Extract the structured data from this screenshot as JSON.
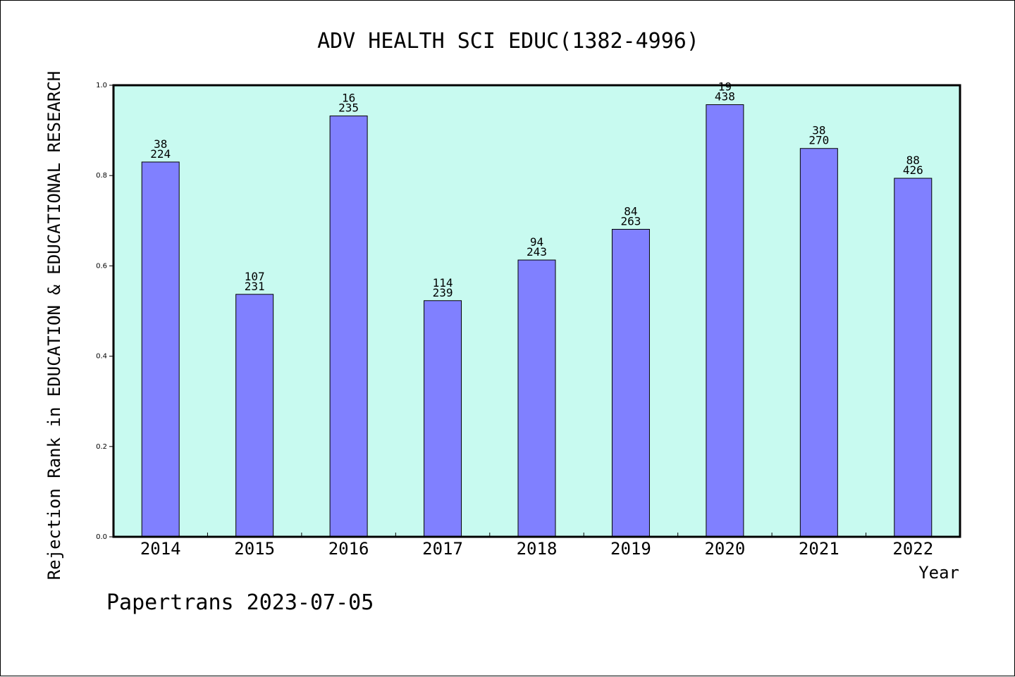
{
  "chart_data": {
    "type": "bar",
    "title": "ADV HEALTH SCI EDUC(1382-4996)",
    "xlabel": "Year",
    "ylabel": "Rejection Rank in EDUCATION & EDUCATIONAL RESEARCH",
    "categories": [
      "2014",
      "2015",
      "2016",
      "2017",
      "2018",
      "2019",
      "2020",
      "2021",
      "2022"
    ],
    "values": [
      0.83,
      0.537,
      0.932,
      0.523,
      0.613,
      0.681,
      0.957,
      0.86,
      0.794
    ],
    "rank_labels": [
      "38",
      "107",
      "16",
      "114",
      "94",
      "84",
      "19",
      "38",
      "88"
    ],
    "total_labels": [
      "224",
      "231",
      "235",
      "239",
      "243",
      "263",
      "438",
      "270",
      "426"
    ],
    "ylim": [
      0,
      1.0
    ],
    "yticks": [
      "0.0",
      "0.2",
      "0.4",
      "0.6",
      "0.8",
      "1.0"
    ],
    "grid": false,
    "legend": "none",
    "colors": {
      "plot_background": "#c8faf0",
      "bar": "#8080ff"
    }
  },
  "footer": {
    "watermark": "Papertrans 2023-07-05"
  }
}
